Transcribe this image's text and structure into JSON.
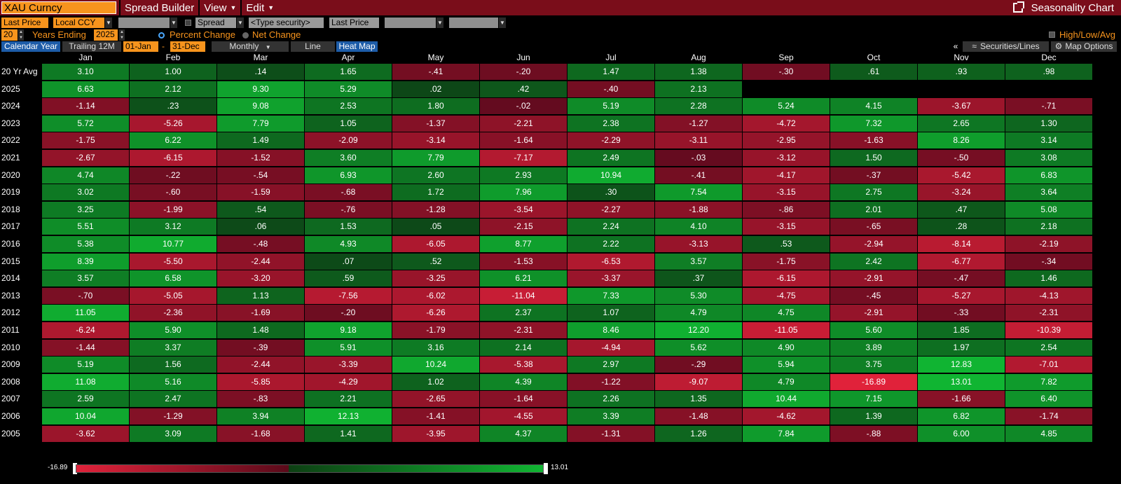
{
  "topbar": {
    "security": "XAU Curncy",
    "menus": [
      {
        "label": "Spread Builder",
        "caret": ""
      },
      {
        "label": "View",
        "caret": "▼"
      },
      {
        "label": "Edit",
        "caret": "▼"
      }
    ],
    "title": "Seasonality Chart"
  },
  "controls": {
    "price_field": "Last Price",
    "currency": "Local CCY",
    "spread_label": "Spread",
    "type_security_placeholder": "<Type security>",
    "price_field_2": "Last Price",
    "years": "20",
    "years_ending_label": "Years Ending",
    "ending_year": "2025",
    "percent_change_label": "Percent Change",
    "net_change_label": "Net Change",
    "high_low_avg_label": "High/Low/Avg",
    "calendar_year": "Calendar Year",
    "trailing_12m": "Trailing 12M",
    "start_date": "01-Jan",
    "date_sep": "-",
    "end_date": "31-Dec",
    "frequency": "Monthly",
    "line_label": "Line",
    "heat_map_label": "Heat Map",
    "collapse_label": "«",
    "securities_lines_label": "Securities/Lines",
    "map_options_label": "Map Options"
  },
  "heatmap": {
    "months": [
      "Jan",
      "Feb",
      "Mar",
      "Apr",
      "May",
      "Jun",
      "Jul",
      "Aug",
      "Sep",
      "Oct",
      "Nov",
      "Dec"
    ],
    "rows": [
      {
        "label": "20 Yr Avg",
        "values": [
          "3.10",
          "1.00",
          ".14",
          "1.65",
          "-.41",
          "-.20",
          "1.47",
          "1.38",
          "-.30",
          ".61",
          ".93",
          ".98"
        ]
      },
      {
        "label": "2025",
        "values": [
          "6.63",
          "2.12",
          "9.30",
          "5.29",
          ".02",
          ".42",
          "-.40",
          "2.13",
          "",
          "",
          "",
          ""
        ]
      },
      {
        "label": "2024",
        "values": [
          "-1.14",
          ".23",
          "9.08",
          "2.53",
          "1.80",
          "-.02",
          "5.19",
          "2.28",
          "5.24",
          "4.15",
          "-3.67",
          "-.71"
        ]
      },
      {
        "label": "2023",
        "values": [
          "5.72",
          "-5.26",
          "7.79",
          "1.05",
          "-1.37",
          "-2.21",
          "2.38",
          "-1.27",
          "-4.72",
          "7.32",
          "2.65",
          "1.30"
        ]
      },
      {
        "label": "2022",
        "values": [
          "-1.75",
          "6.22",
          "1.49",
          "-2.09",
          "-3.14",
          "-1.64",
          "-2.29",
          "-3.11",
          "-2.95",
          "-1.63",
          "8.26",
          "3.14"
        ]
      },
      {
        "label": "2021",
        "values": [
          "-2.67",
          "-6.15",
          "-1.52",
          "3.60",
          "7.79",
          "-7.17",
          "2.49",
          "-.03",
          "-3.12",
          "1.50",
          "-.50",
          "3.08"
        ]
      },
      {
        "label": "2020",
        "values": [
          "4.74",
          "-.22",
          "-.54",
          "6.93",
          "2.60",
          "2.93",
          "10.94",
          "-.41",
          "-4.17",
          "-.37",
          "-5.42",
          "6.83"
        ]
      },
      {
        "label": "2019",
        "values": [
          "3.02",
          "-.60",
          "-1.59",
          "-.68",
          "1.72",
          "7.96",
          ".30",
          "7.54",
          "-3.15",
          "2.75",
          "-3.24",
          "3.64"
        ]
      },
      {
        "label": "2018",
        "values": [
          "3.25",
          "-1.99",
          ".54",
          "-.76",
          "-1.28",
          "-3.54",
          "-2.27",
          "-1.88",
          "-.86",
          "2.01",
          ".47",
          "5.08"
        ]
      },
      {
        "label": "2017",
        "values": [
          "5.51",
          "3.12",
          ".06",
          "1.53",
          ".05",
          "-2.15",
          "2.24",
          "4.10",
          "-3.15",
          "-.65",
          ".28",
          "2.18"
        ]
      },
      {
        "label": "2016",
        "values": [
          "5.38",
          "10.77",
          "-.48",
          "4.93",
          "-6.05",
          "8.77",
          "2.22",
          "-3.13",
          ".53",
          "-2.94",
          "-8.14",
          "-2.19"
        ]
      },
      {
        "label": "2015",
        "values": [
          "8.39",
          "-5.50",
          "-2.44",
          ".07",
          ".52",
          "-1.53",
          "-6.53",
          "3.57",
          "-1.75",
          "2.42",
          "-6.77",
          "-.34"
        ]
      },
      {
        "label": "2014",
        "values": [
          "3.57",
          "6.58",
          "-3.20",
          ".59",
          "-3.25",
          "6.21",
          "-3.37",
          ".37",
          "-6.15",
          "-2.91",
          "-.47",
          "1.46"
        ]
      },
      {
        "label": "2013",
        "values": [
          "-.70",
          "-5.05",
          "1.13",
          "-7.56",
          "-6.02",
          "-11.04",
          "7.33",
          "5.30",
          "-4.75",
          "-.45",
          "-5.27",
          "-4.13"
        ]
      },
      {
        "label": "2012",
        "values": [
          "11.05",
          "-2.36",
          "-1.69",
          "-.20",
          "-6.26",
          "2.37",
          "1.07",
          "4.79",
          "4.75",
          "-2.91",
          "-.33",
          "-2.31"
        ]
      },
      {
        "label": "2011",
        "values": [
          "-6.24",
          "5.90",
          "1.48",
          "9.18",
          "-1.79",
          "-2.31",
          "8.46",
          "12.20",
          "-11.05",
          "5.60",
          "1.85",
          "-10.39"
        ]
      },
      {
        "label": "2010",
        "values": [
          "-1.44",
          "3.37",
          "-.39",
          "5.91",
          "3.16",
          "2.14",
          "-4.94",
          "5.62",
          "4.90",
          "3.89",
          "1.97",
          "2.54"
        ]
      },
      {
        "label": "2009",
        "values": [
          "5.19",
          "1.56",
          "-2.44",
          "-3.39",
          "10.24",
          "-5.38",
          "2.97",
          "-.29",
          "5.94",
          "3.75",
          "12.83",
          "-7.01"
        ]
      },
      {
        "label": "2008",
        "values": [
          "11.08",
          "5.16",
          "-5.85",
          "-4.29",
          "1.02",
          "4.39",
          "-1.22",
          "-9.07",
          "4.79",
          "-16.89",
          "13.01",
          "7.82"
        ]
      },
      {
        "label": "2007",
        "values": [
          "2.59",
          "2.47",
          "-.83",
          "2.21",
          "-2.65",
          "-1.64",
          "2.26",
          "1.35",
          "10.44",
          "7.15",
          "-1.66",
          "6.40"
        ]
      },
      {
        "label": "2006",
        "values": [
          "10.04",
          "-1.29",
          "3.94",
          "12.13",
          "-1.41",
          "-4.55",
          "3.39",
          "-1.48",
          "-4.62",
          "1.39",
          "6.82",
          "-1.74"
        ]
      },
      {
        "label": "2005",
        "values": [
          "-3.62",
          "3.09",
          "-1.68",
          "1.41",
          "-3.95",
          "4.37",
          "-1.31",
          "1.26",
          "7.84",
          "-.88",
          "6.00",
          "4.85"
        ]
      }
    ]
  },
  "legend": {
    "min": "-16.89",
    "max": "13.01"
  },
  "colors": {
    "positive_max": "#10b532",
    "positive_min": "#0d3f13",
    "negative_min": "#5a0a1a",
    "negative_max": "#e0223a",
    "accent_orange": "#f7941d",
    "header_red": "#7a0d1a"
  }
}
